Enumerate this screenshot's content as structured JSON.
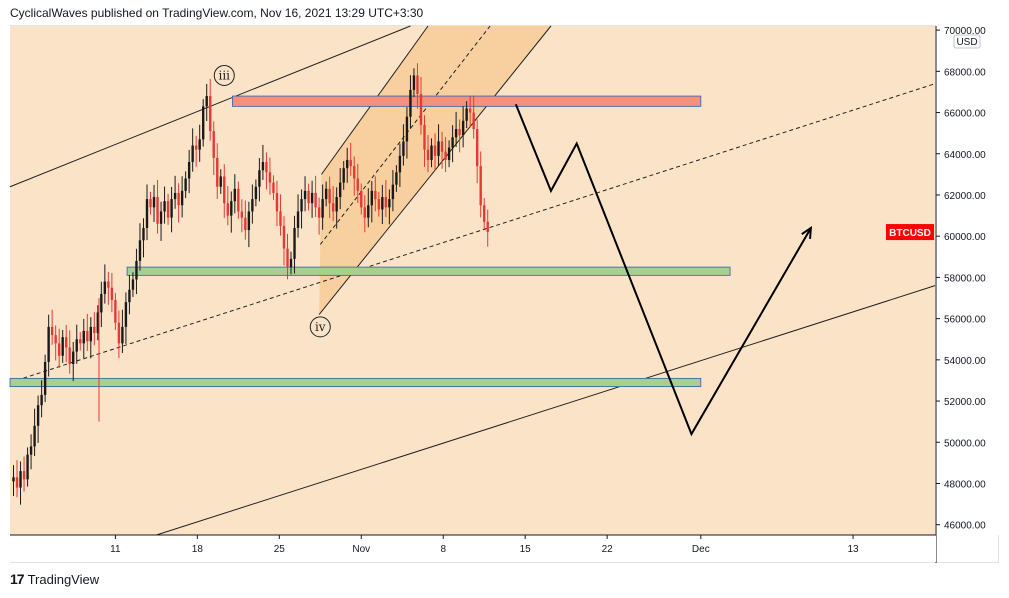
{
  "header": {
    "text": "CyclicalWaves published on TradingView.com, Nov 16, 2021 13:29 UTC+3:30"
  },
  "footer": {
    "logo": "17",
    "brand": "TradingView"
  },
  "colors": {
    "up": "#26a69a",
    "down": "#ef5350",
    "candle_dark": "#1a1a1a",
    "candle_red": "#e53935",
    "bg_outer": "#fbe3c8",
    "bg_inner": "#f8cf9f",
    "resistance": "#f4907c",
    "support": "#a9cf8e",
    "price_tag": "#ff0000"
  },
  "chart_data": {
    "type": "candlestick",
    "symbol": "BTCUSD",
    "currency": "USD",
    "ylim": [
      45500,
      70200
    ],
    "y_ticks": [
      46000,
      48000,
      50000,
      52000,
      54000,
      56000,
      58000,
      60000,
      62000,
      64000,
      66000,
      68000,
      70000
    ],
    "y_tick_labels": [
      "46000.00",
      "48000.00",
      "50000.00",
      "52000.00",
      "54000.00",
      "56000.00",
      "58000.00",
      "60000.00",
      "62000.00",
      "64000.00",
      "66000.00",
      "68000.00",
      "70000.00"
    ],
    "x_ticks": [
      {
        "label": "11",
        "day": 11
      },
      {
        "label": "18",
        "day": 18
      },
      {
        "label": "25",
        "day": 25
      },
      {
        "label": "Nov",
        "day": 32
      },
      {
        "label": "8",
        "day": 39
      },
      {
        "label": "15",
        "day": 46
      },
      {
        "label": "22",
        "day": 53
      },
      {
        "label": "Dec",
        "day": 61
      },
      {
        "label": "13",
        "day": 74
      }
    ],
    "x_domain_days": [
      2,
      81
    ],
    "last_price_label": "BTCUSD",
    "last_price": 60200,
    "wave_labels": [
      {
        "text": "iii",
        "day": 20.3,
        "price": 67800
      },
      {
        "text": "iv",
        "day": 28.5,
        "price": 55600
      }
    ],
    "zones": [
      {
        "kind": "resistance",
        "day_from": 21,
        "day_to": 61,
        "price_from": 66300,
        "price_to": 66800
      },
      {
        "kind": "support",
        "day_from": 12,
        "day_to": 63.5,
        "price_from": 58100,
        "price_to": 58500
      },
      {
        "kind": "support",
        "day_from": 2,
        "day_to": 61,
        "price_from": 52700,
        "price_to": 53100
      }
    ],
    "projection_path": [
      {
        "day": 45.2,
        "price": 66400
      },
      {
        "day": 48.2,
        "price": 62200
      },
      {
        "day": 50.4,
        "price": 64500
      },
      {
        "day": 60.2,
        "price": 50400
      },
      {
        "day": 70.4,
        "price": 60400
      }
    ],
    "candles_hourly_closes": [
      [
        2,
        48100
      ],
      [
        2.3,
        48300
      ],
      [
        2.6,
        47800
      ],
      [
        2.9,
        48600
      ],
      [
        3.2,
        48200
      ],
      [
        3.5,
        49400
      ],
      [
        3.8,
        49800
      ],
      [
        4.1,
        50800
      ],
      [
        4.4,
        51800
      ],
      [
        4.7,
        52300
      ],
      [
        5,
        53900
      ],
      [
        5.3,
        55600
      ],
      [
        5.6,
        55200
      ],
      [
        5.9,
        54800
      ],
      [
        6.2,
        54200
      ],
      [
        6.5,
        55100
      ],
      [
        6.8,
        54600
      ],
      [
        7.1,
        53800
      ],
      [
        7.4,
        54400
      ],
      [
        7.7,
        55000
      ],
      [
        8,
        54800
      ],
      [
        8.3,
        55400
      ],
      [
        8.6,
        54900
      ],
      [
        8.9,
        55600
      ],
      [
        9.2,
        55300
      ],
      [
        9.5,
        56300
      ],
      [
        9.8,
        57200
      ],
      [
        10.1,
        57800
      ],
      [
        10.4,
        57500
      ],
      [
        10.7,
        56900
      ],
      [
        11,
        55800
      ],
      [
        11.3,
        54800
      ],
      [
        11.6,
        55600
      ],
      [
        11.9,
        56800
      ],
      [
        12.2,
        57400
      ],
      [
        12.5,
        57900
      ],
      [
        12.8,
        58800
      ],
      [
        13.1,
        59800
      ],
      [
        13.4,
        60400
      ],
      [
        13.7,
        61800
      ],
      [
        14,
        61400
      ],
      [
        14.3,
        61900
      ],
      [
        14.6,
        60600
      ],
      [
        14.9,
        61200
      ],
      [
        15.2,
        61700
      ],
      [
        15.5,
        60900
      ],
      [
        15.8,
        61800
      ],
      [
        16.1,
        62100
      ],
      [
        16.4,
        61500
      ],
      [
        16.7,
        62200
      ],
      [
        17,
        62800
      ],
      [
        17.3,
        63600
      ],
      [
        17.6,
        64400
      ],
      [
        17.9,
        64200
      ],
      [
        18.2,
        64700
      ],
      [
        18.5,
        66300
      ],
      [
        18.8,
        66800
      ],
      [
        19.1,
        65100
      ],
      [
        19.4,
        63800
      ],
      [
        19.7,
        62400
      ],
      [
        20,
        62900
      ],
      [
        20.3,
        61600
      ],
      [
        20.6,
        61000
      ],
      [
        20.9,
        61700
      ],
      [
        21.2,
        62300
      ],
      [
        21.5,
        61200
      ],
      [
        21.8,
        60900
      ],
      [
        22.1,
        60300
      ],
      [
        22.4,
        61200
      ],
      [
        22.7,
        61800
      ],
      [
        23,
        62400
      ],
      [
        23.3,
        63200
      ],
      [
        23.6,
        63600
      ],
      [
        23.9,
        63100
      ],
      [
        24.2,
        62600
      ],
      [
        24.5,
        62100
      ],
      [
        24.8,
        61200
      ],
      [
        25.1,
        60500
      ],
      [
        25.4,
        59400
      ],
      [
        25.7,
        58500
      ],
      [
        26,
        58900
      ],
      [
        26.3,
        60400
      ],
      [
        26.6,
        61200
      ],
      [
        26.9,
        61800
      ],
      [
        27.2,
        62200
      ],
      [
        27.5,
        61600
      ],
      [
        27.8,
        62100
      ],
      [
        28.1,
        61400
      ],
      [
        28.4,
        60900
      ],
      [
        28.7,
        61800
      ],
      [
        29,
        62300
      ],
      [
        29.3,
        61600
      ],
      [
        29.6,
        61200
      ],
      [
        29.9,
        61900
      ],
      [
        30.2,
        62600
      ],
      [
        30.5,
        63300
      ],
      [
        30.8,
        63700
      ],
      [
        31.1,
        63400
      ],
      [
        31.4,
        62800
      ],
      [
        31.7,
        62200
      ],
      [
        32,
        61400
      ],
      [
        32.3,
        60900
      ],
      [
        32.6,
        61500
      ],
      [
        32.9,
        62200
      ],
      [
        33.2,
        61800
      ],
      [
        33.5,
        61300
      ],
      [
        33.8,
        61900
      ],
      [
        34.1,
        61400
      ],
      [
        34.4,
        61800
      ],
      [
        34.7,
        62500
      ],
      [
        35,
        63100
      ],
      [
        35.3,
        63900
      ],
      [
        35.6,
        64600
      ],
      [
        35.9,
        65800
      ],
      [
        36.2,
        67100
      ],
      [
        36.5,
        67800
      ],
      [
        36.8,
        66900
      ],
      [
        37.1,
        65400
      ],
      [
        37.4,
        64200
      ],
      [
        37.7,
        63700
      ],
      [
        38,
        64400
      ],
      [
        38.3,
        63900
      ],
      [
        38.6,
        64600
      ],
      [
        38.9,
        64100
      ],
      [
        39.2,
        63700
      ],
      [
        39.5,
        64300
      ],
      [
        39.8,
        64800
      ],
      [
        40.1,
        65200
      ],
      [
        40.4,
        64900
      ],
      [
        40.7,
        65600
      ],
      [
        41,
        66200
      ],
      [
        41.3,
        66000
      ],
      [
        41.6,
        65200
      ],
      [
        41.9,
        63400
      ],
      [
        42.2,
        61500
      ],
      [
        42.5,
        60700
      ],
      [
        42.8,
        60200
      ]
    ]
  }
}
